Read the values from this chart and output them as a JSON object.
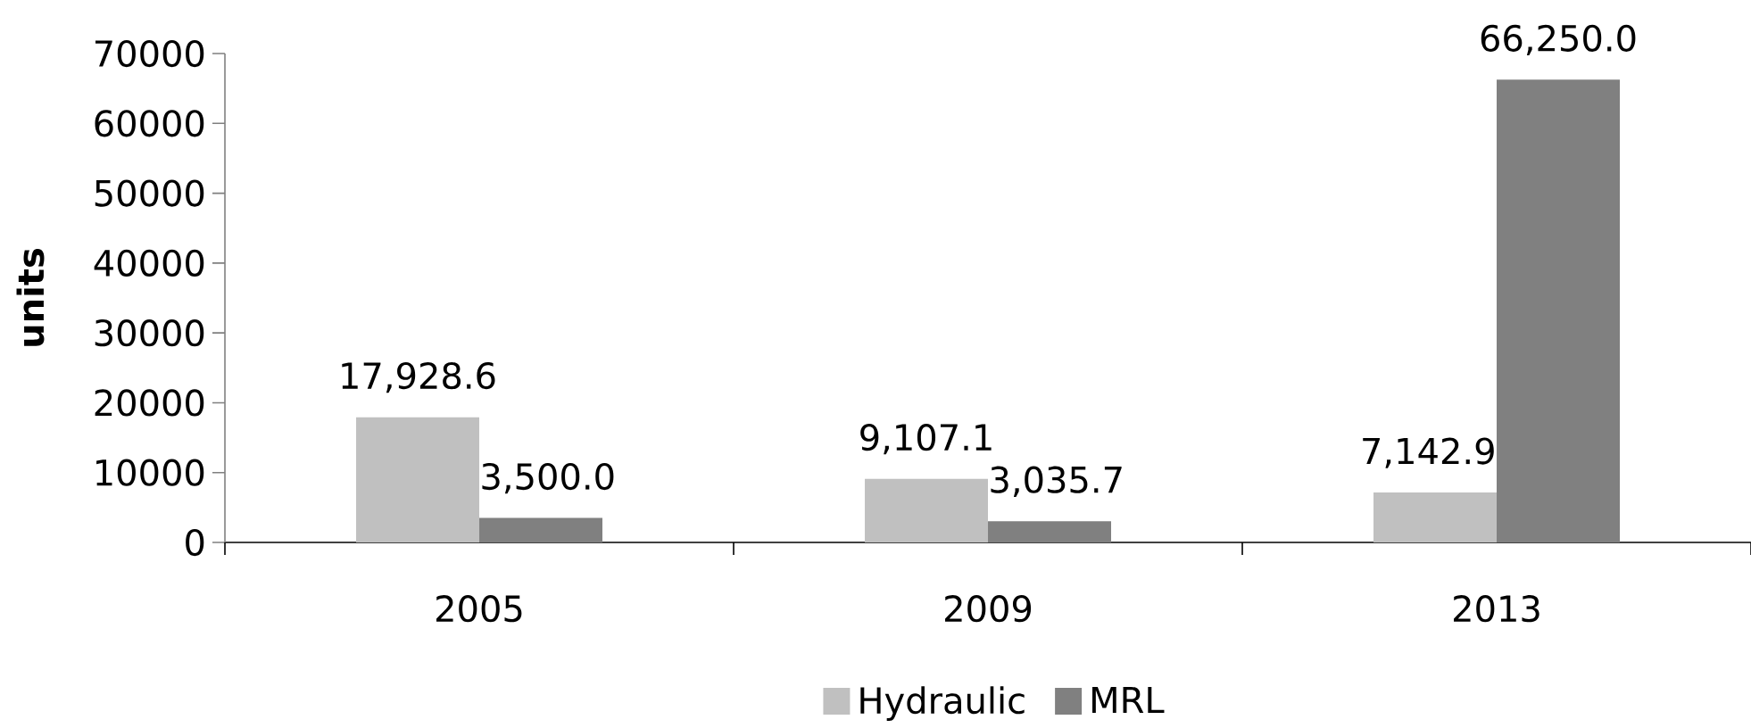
{
  "chart_data": {
    "type": "bar",
    "ylabel": "units",
    "categories": [
      "2005",
      "2009",
      "2013"
    ],
    "series": [
      {
        "name": "Hydraulic",
        "color": "#c0c0c0",
        "values": [
          17928.6,
          9107.1,
          7142.9
        ],
        "value_labels": [
          "17,928.6",
          "9,107.1",
          "7,142.9"
        ]
      },
      {
        "name": "MRL",
        "color": "#808080",
        "values": [
          3500.0,
          3035.7,
          66250.0
        ],
        "value_labels": [
          "3,500.0",
          "3,035.7",
          "66,250.0"
        ]
      }
    ],
    "ylim": [
      0,
      70000
    ],
    "yticks": [
      0,
      10000,
      20000,
      30000,
      40000,
      50000,
      60000,
      70000
    ],
    "legend": "bottom"
  }
}
